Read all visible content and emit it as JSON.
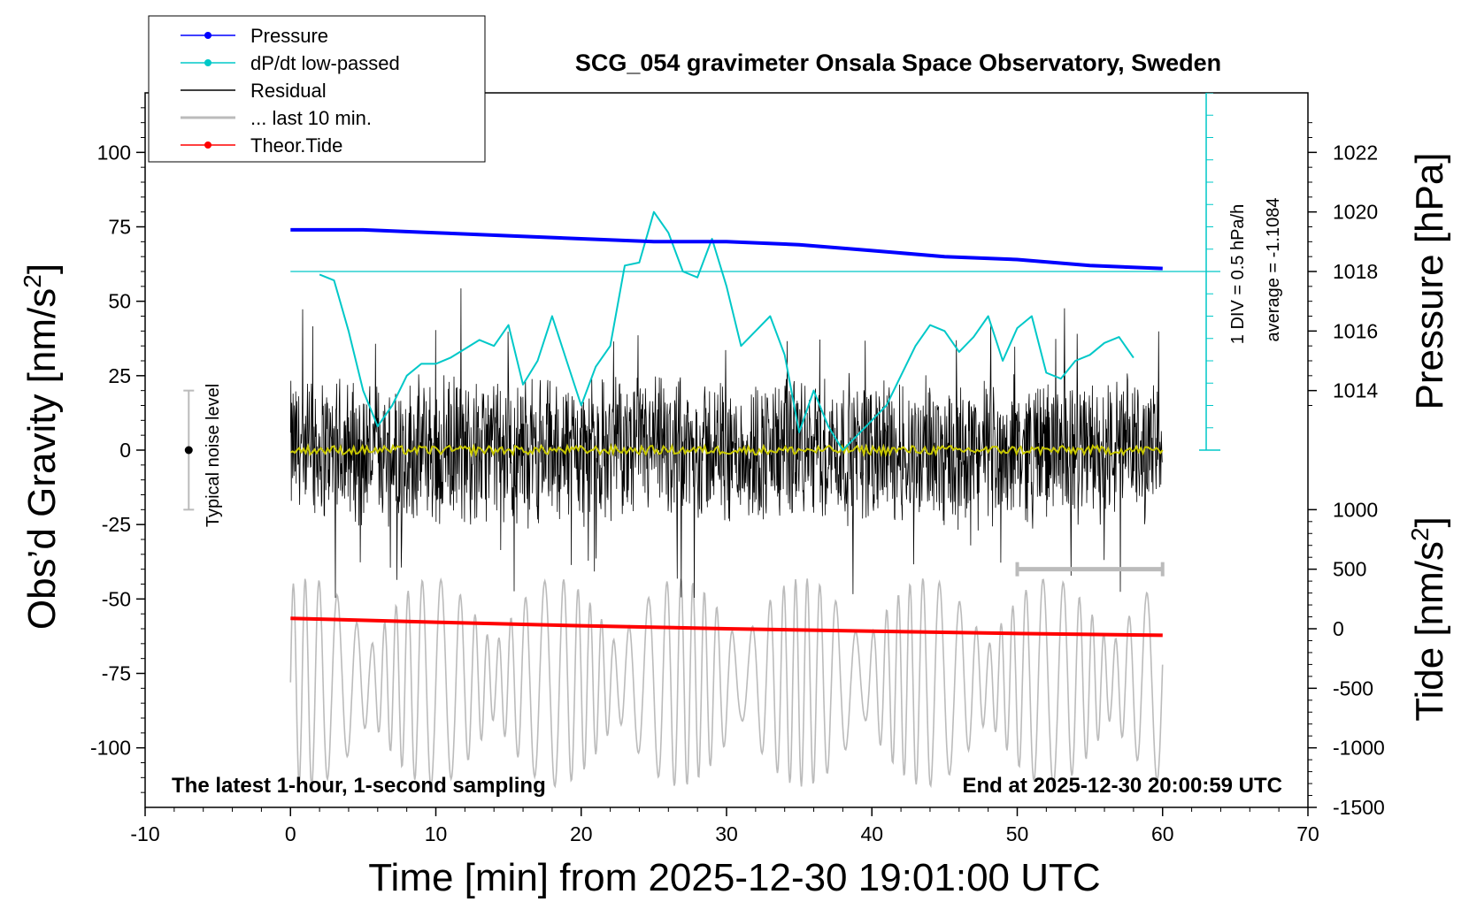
{
  "chart_data": {
    "type": "line",
    "title": "SCG_054 gravimeter Onsala Space Observatory, Sweden",
    "xlabel": "Time [min] from 2025-12-30 19:01:00 UTC",
    "ylabel_left_main": "Obs’d Gravity [nm/s",
    "ylabel_left_sup": "2",
    "ylabel_left_end": "]",
    "ylabel_right_pressure": "Pressure [hPa]",
    "ylabel_right_tide_main": "Tide [nm/s",
    "ylabel_right_tide_sup": "2",
    "ylabel_right_tide_end": "]",
    "xlim": [
      -10,
      70
    ],
    "ylim": [
      -120,
      120
    ],
    "pressure_ylim": [
      1010.0,
      1024.0
    ],
    "tide_ylim": [
      -1500,
      1500
    ],
    "x_ticks": [
      "-10",
      "0",
      "10",
      "20",
      "30",
      "40",
      "50",
      "60",
      "70"
    ],
    "y_ticks": [
      "100",
      "75",
      "50",
      "25",
      "0",
      "-25",
      "-50",
      "-75",
      "-100"
    ],
    "pressure_ticks": [
      "1022",
      "1020",
      "1018",
      "1016",
      "1014"
    ],
    "tide_ticks": [
      "1000",
      "500",
      "0",
      "-500",
      "-1000",
      "-1500"
    ],
    "legend": [
      {
        "label": "Pressure",
        "color": "#0000ff",
        "marker": true
      },
      {
        "label": "dP/dt low-passed",
        "color": "#00c8c8",
        "marker": true
      },
      {
        "label": "Residual",
        "color": "#000000",
        "marker": false
      },
      {
        "label": "... last 10 min.",
        "color": "#bbbbbb",
        "marker": false
      },
      {
        "label": "Theor.Tide",
        "color": "#ff0000",
        "marker": true
      }
    ],
    "series": [
      {
        "name": "Pressure",
        "units": "hPa",
        "color": "#0000ff",
        "x": [
          0,
          5,
          10,
          15,
          20,
          25,
          30,
          35,
          40,
          45,
          50,
          55,
          60
        ],
        "values": [
          1019.4,
          1019.4,
          1019.3,
          1019.2,
          1019.1,
          1019.0,
          1019.0,
          1018.9,
          1018.7,
          1018.5,
          1018.4,
          1018.2,
          1018.1
        ]
      },
      {
        "name": "dP/dt low-passed",
        "units": "nm/s2 equivalent",
        "color": "#00c8c8",
        "x": [
          2,
          3,
          4,
          5,
          6,
          7,
          8,
          9,
          10,
          11,
          12,
          13,
          14,
          15,
          16,
          17,
          18,
          19,
          20,
          21,
          22,
          23,
          24,
          25,
          26,
          27,
          28,
          29,
          30,
          31,
          32,
          33,
          34,
          35,
          36,
          37,
          38,
          39,
          40,
          41,
          42,
          43,
          44,
          45,
          46,
          47,
          48,
          49,
          50,
          51,
          52,
          53,
          54,
          55,
          56,
          57,
          58
        ],
        "values": [
          59,
          57,
          40,
          20,
          8,
          15,
          25,
          29,
          29,
          31,
          34,
          37,
          35,
          42,
          22,
          30,
          45,
          30,
          15,
          28,
          35,
          62,
          63,
          80,
          73,
          60,
          58,
          71,
          55,
          35,
          40,
          45,
          32,
          6,
          20,
          8,
          0,
          5,
          10,
          15,
          25,
          35,
          42,
          40,
          33,
          38,
          45,
          30,
          41,
          45,
          26,
          24,
          30,
          32,
          36,
          38,
          31
        ]
      },
      {
        "name": "Residual",
        "units": "nm/s2",
        "color": "#000000",
        "x_range": [
          0,
          60
        ],
        "envelope": [
          -25,
          25
        ],
        "extremes": [
          -50,
          55
        ]
      },
      {
        "name": "Residual smoothed",
        "units": "nm/s2",
        "color": "#c8c800",
        "x_range": [
          0,
          60
        ],
        "values_around": 0
      },
      {
        "name": "... last 10 min.",
        "units": "nm/s2",
        "color": "#bbbbbb",
        "x_range": [
          0,
          60
        ],
        "center": -78,
        "amplitude": 35
      },
      {
        "name": "Theor.Tide",
        "units": "nm/s2",
        "color": "#ff0000",
        "x": [
          0,
          10,
          20,
          30,
          40,
          50,
          60
        ],
        "values": [
          -56.5,
          -57.8,
          -59.0,
          -60.0,
          -60.8,
          -61.6,
          -62.2
        ]
      }
    ],
    "dpdt_scale": {
      "div_label": "1 DIV = 0.5 hPa/h",
      "average_label": "average = -1.1084",
      "zero_line_y": 60
    },
    "noise_indicator": {
      "label": "Typical noise level",
      "x": -7,
      "range": [
        -20,
        20
      ]
    },
    "last10_bar": {
      "x": [
        50,
        60
      ],
      "y": -40
    },
    "footer_left": "The latest 1-hour, 1-second sampling",
    "footer_right": "End at 2025-12-30 20:00:59 UTC"
  }
}
